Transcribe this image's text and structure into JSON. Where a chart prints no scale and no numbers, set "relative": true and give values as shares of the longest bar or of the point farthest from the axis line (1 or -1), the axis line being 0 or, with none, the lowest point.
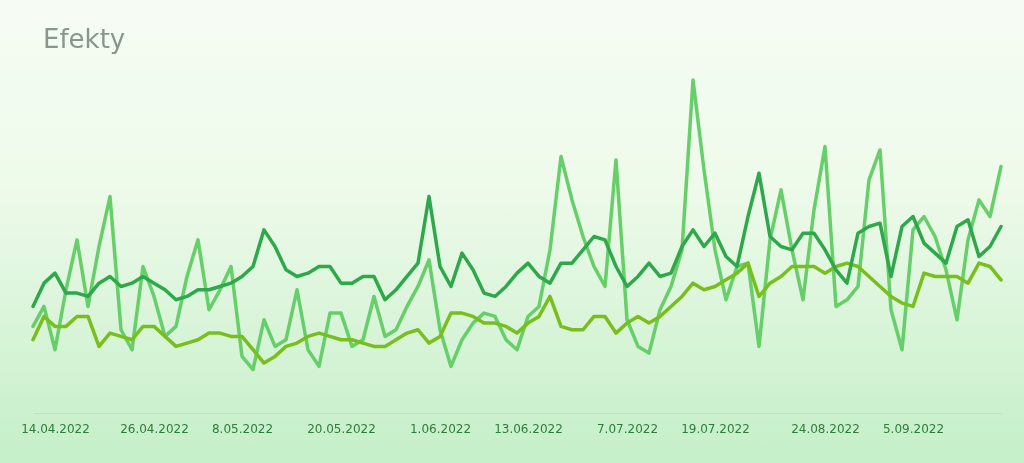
{
  "chart_data": {
    "type": "line",
    "title": "Efekty",
    "relative": true,
    "legend": false,
    "grid": false,
    "line_style": "solid",
    "categories": [
      null,
      null,
      "14.04.2022",
      null,
      null,
      null,
      null,
      null,
      null,
      null,
      null,
      "26.04.2022",
      null,
      null,
      null,
      null,
      null,
      null,
      null,
      "8.05.2022",
      null,
      null,
      null,
      null,
      null,
      null,
      null,
      null,
      "20.05.2022",
      null,
      null,
      null,
      null,
      null,
      null,
      null,
      null,
      "1.06.2022",
      null,
      null,
      null,
      null,
      null,
      null,
      null,
      "13.06.2022",
      null,
      null,
      null,
      null,
      null,
      null,
      null,
      null,
      "7.07.2022",
      null,
      null,
      null,
      null,
      null,
      null,
      null,
      "19.07.2022",
      null,
      null,
      null,
      null,
      null,
      null,
      null,
      null,
      null,
      "24.08.2022",
      null,
      null,
      null,
      null,
      null,
      null,
      null,
      "5.09.2022",
      null,
      null,
      null,
      null,
      null,
      null,
      null,
      null
    ],
    "series": [
      {
        "color": "#66cf6a",
        "values": [
          0.26,
          0.32,
          0.19,
          0.37,
          0.52,
          0.32,
          0.5,
          0.65,
          0.25,
          0.19,
          0.44,
          0.35,
          0.23,
          0.26,
          0.41,
          0.52,
          0.31,
          0.37,
          0.44,
          0.17,
          0.13,
          0.28,
          0.2,
          0.22,
          0.37,
          0.19,
          0.14,
          0.3,
          0.3,
          0.2,
          0.22,
          0.35,
          0.23,
          0.25,
          0.32,
          0.38,
          0.46,
          0.25,
          0.14,
          0.22,
          0.27,
          0.3,
          0.29,
          0.22,
          0.19,
          0.29,
          0.32,
          0.49,
          0.77,
          0.64,
          0.53,
          0.44,
          0.38,
          0.76,
          0.28,
          0.2,
          0.18,
          0.31,
          0.38,
          0.49,
          1.0,
          0.73,
          0.49,
          0.34,
          0.44,
          0.45,
          0.2,
          0.52,
          0.67,
          0.49,
          0.34,
          0.61,
          0.8,
          0.32,
          0.34,
          0.38,
          0.7,
          0.79,
          0.31,
          0.19,
          0.55,
          0.59,
          0.53,
          0.43,
          0.28,
          0.52,
          0.64,
          0.59,
          0.74
        ]
      },
      {
        "color": "#78bf1e",
        "values": [
          0.22,
          0.29,
          0.26,
          0.26,
          0.29,
          0.29,
          0.2,
          0.24,
          0.23,
          0.22,
          0.26,
          0.26,
          0.23,
          0.2,
          0.21,
          0.22,
          0.24,
          0.24,
          0.23,
          0.23,
          0.19,
          0.15,
          0.17,
          0.2,
          0.21,
          0.23,
          0.24,
          0.23,
          0.22,
          0.22,
          0.21,
          0.2,
          0.2,
          0.22,
          0.24,
          0.25,
          0.21,
          0.23,
          0.3,
          0.3,
          0.29,
          0.27,
          0.27,
          0.26,
          0.24,
          0.27,
          0.29,
          0.35,
          0.26,
          0.25,
          0.25,
          0.29,
          0.29,
          0.24,
          0.27,
          0.29,
          0.27,
          0.29,
          0.32,
          0.35,
          0.39,
          0.37,
          0.38,
          0.4,
          0.42,
          0.45,
          0.35,
          0.39,
          0.41,
          0.44,
          0.44,
          0.44,
          0.42,
          0.44,
          0.45,
          0.44,
          0.41,
          0.38,
          0.35,
          0.33,
          0.32,
          0.42,
          0.41,
          0.41,
          0.41,
          0.39,
          0.45,
          0.44,
          0.4
        ]
      },
      {
        "color": "#2ea84a",
        "values": [
          0.32,
          0.39,
          0.42,
          0.36,
          0.36,
          0.35,
          0.39,
          0.41,
          0.38,
          0.39,
          0.41,
          0.39,
          0.37,
          0.34,
          0.35,
          0.37,
          0.37,
          0.38,
          0.39,
          0.41,
          0.44,
          0.55,
          0.5,
          0.43,
          0.41,
          0.42,
          0.44,
          0.44,
          0.39,
          0.39,
          0.41,
          0.41,
          0.34,
          0.37,
          0.41,
          0.45,
          0.65,
          0.44,
          0.38,
          0.48,
          0.43,
          0.36,
          0.35,
          0.38,
          0.42,
          0.45,
          0.41,
          0.39,
          0.45,
          0.45,
          0.49,
          0.53,
          0.52,
          0.44,
          0.38,
          0.41,
          0.45,
          0.41,
          0.42,
          0.5,
          0.55,
          0.5,
          0.54,
          0.47,
          0.44,
          0.59,
          0.72,
          0.53,
          0.5,
          0.49,
          0.54,
          0.54,
          0.49,
          0.43,
          0.39,
          0.54,
          0.56,
          0.57,
          0.41,
          0.56,
          0.59,
          0.51,
          0.48,
          0.45,
          0.56,
          0.58,
          0.47,
          0.5,
          0.56
        ]
      }
    ]
  }
}
